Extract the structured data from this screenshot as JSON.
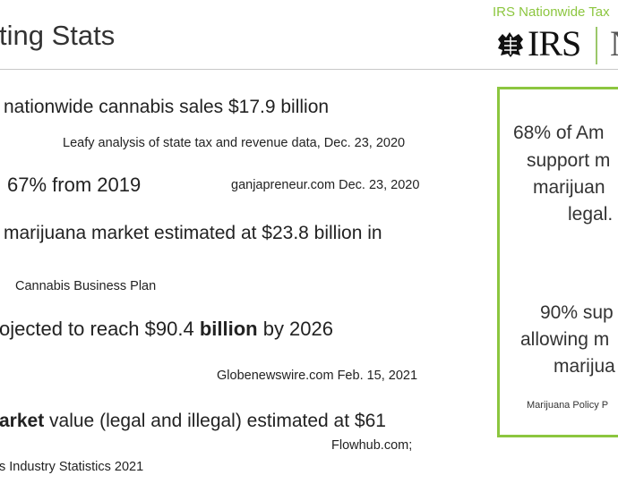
{
  "header": {
    "title": "ting Stats",
    "irs_banner": "IRS Nationwide Tax",
    "irs_logo_text": "IRS",
    "irs_next_letter": "N"
  },
  "stats": [
    {
      "text": "nationwide cannabis sales $17.9 billion",
      "source": "Leafy analysis of state tax and revenue data, Dec. 23, 2020"
    },
    {
      "text": "67% from 2019",
      "source": "ganjapreneur.com Dec. 23, 2020"
    },
    {
      "text": "marijuana market estimated at $23.8 billion in",
      "source": "Cannabis Business Plan"
    },
    {
      "text_pre": "ojected to reach $90.4 ",
      "text_bold": "billion",
      "text_post": " by 2026",
      "source": "Globenewswire.com Feb. 15, 2021"
    },
    {
      "text_bold": "arket",
      "text_post": " value (legal and illegal) estimated at $61",
      "source": "Flowhub.com;",
      "source2": "s Industry Statistics 2021"
    }
  ],
  "sidebar_box": {
    "lines1": [
      "68% of Am",
      "support m",
      "marijuan",
      "legal."
    ],
    "lines2": [
      "90% sup",
      "allowing m",
      "marijua"
    ],
    "source": "Marijuana Policy P"
  },
  "colors": {
    "accent": "#8cc63f",
    "text": "#222222"
  }
}
